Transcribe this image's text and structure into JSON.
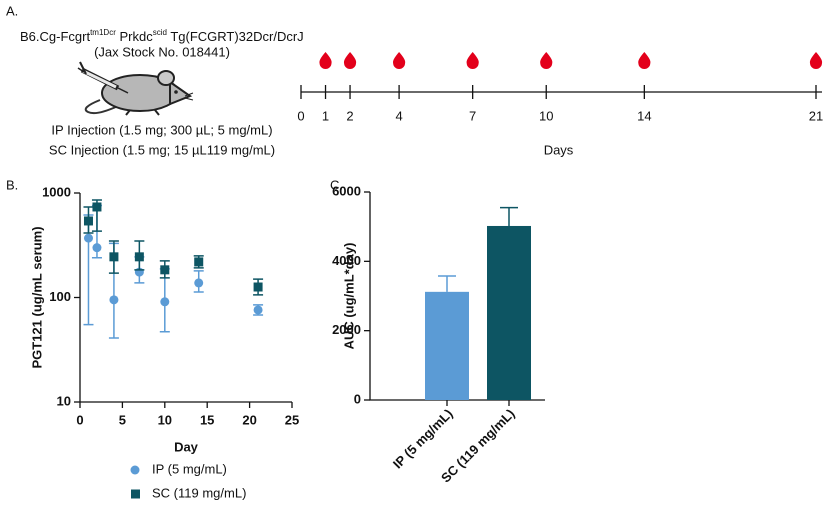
{
  "panel_labels": [
    "A.",
    "B.",
    "C."
  ],
  "strain": {
    "parts": [
      "B6.Cg-Fcgrt",
      "tm1Dcr",
      " Prkdc",
      "scid",
      " Tg(FCGRT)32Dcr/DcrJ"
    ],
    "stock": "(Jax Stock No. 018441)"
  },
  "injections": [
    "IP Injection (1.5 mg; 300 µL; 5 mg/mL)",
    "SC Injection (1.5 mg; 15 µL119 mg/mL)"
  ],
  "timeline": {
    "xlabel": "Days",
    "xlim": [
      0,
      21
    ],
    "xticks": [
      0,
      1,
      2,
      4,
      7,
      10,
      14,
      21
    ],
    "sample_days": [
      1,
      2,
      4,
      7,
      10,
      14,
      21
    ],
    "color": "#e3001b"
  },
  "chart_data": [
    {
      "type": "scatter",
      "xlabel": "Day",
      "ylabel": "PGT121 (ug/mL serum)",
      "log_y": true,
      "xlim": [
        0,
        25
      ],
      "xticks": [
        0,
        5,
        10,
        15,
        20,
        25
      ],
      "ylim": [
        10,
        1000
      ],
      "yticks": [
        10,
        100,
        1000
      ],
      "legend": "bottom",
      "series": [
        {
          "name": "IP (5 mg/mL)",
          "color": "#5b9bd5",
          "marker": "circle",
          "x": [
            1,
            2,
            4,
            7,
            10,
            14,
            21
          ],
          "values": [
            370,
            300,
            95,
            175,
            91,
            138,
            76
          ],
          "errors_low": [
            315,
            60,
            54,
            37,
            44,
            25,
            8
          ],
          "errors_high": [
            246,
            460,
            235,
            70,
            97,
            42,
            9
          ]
        },
        {
          "name": "SC (119 mg/mL)",
          "color": "#0d5563",
          "marker": "square",
          "x": [
            1,
            2,
            4,
            7,
            10,
            14,
            21
          ],
          "values": [
            540,
            735,
            245,
            245,
            184,
            219,
            126
          ],
          "errors_low": [
            126,
            303,
            74,
            61,
            30,
            27,
            20
          ],
          "errors_high": [
            195,
            122,
            102,
            102,
            40,
            31,
            24
          ]
        }
      ]
    },
    {
      "type": "bar",
      "ylabel": "AUC (ug/mL*day)",
      "ylim": [
        0,
        6000
      ],
      "yticks": [
        0,
        2000,
        4000,
        6000
      ],
      "categories": [
        "IP (5 mg/mL)",
        "SC (119 mg/mL)"
      ],
      "values": [
        3120,
        5020
      ],
      "errors": [
        456,
        530
      ],
      "colors": [
        "#5b9bd5",
        "#0d5563"
      ]
    }
  ]
}
